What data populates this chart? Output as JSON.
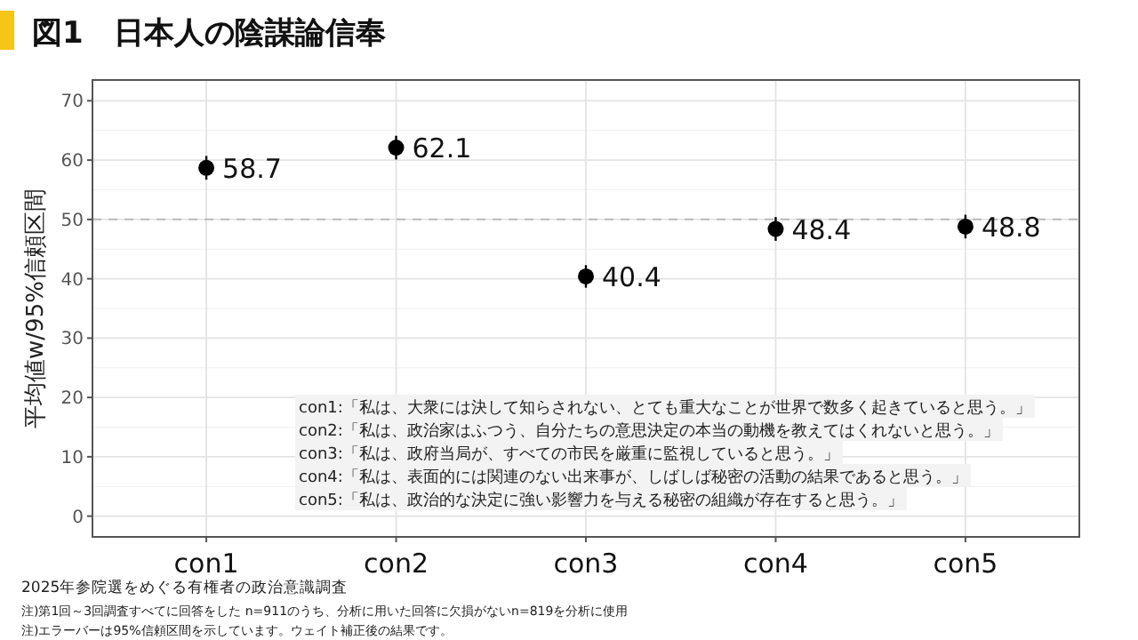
{
  "chart_data": {
    "type": "scatter",
    "title": "図1　日本人の陰謀論信奉",
    "ylabel": "平均値w/95%信頼区間",
    "categories": [
      "con1",
      "con2",
      "con3",
      "con4",
      "con5"
    ],
    "values": [
      58.7,
      62.1,
      40.4,
      48.4,
      48.8
    ],
    "errors": [
      2.0,
      2.0,
      1.9,
      2.0,
      2.0
    ],
    "color": "#000000",
    "marker": "circle",
    "data_labels": true,
    "grid": true,
    "ylim": [
      -3.5,
      73.5
    ],
    "yticks": [
      0,
      10,
      20,
      30,
      40,
      50,
      60,
      70
    ],
    "ref_lines": [
      {
        "axis": "y",
        "value": 50,
        "color": "#bbbbbb",
        "line_style": "dashed"
      }
    ],
    "annotations": [
      "con1:「私は、大衆には決して知らされない、とても重大なことが世界で数多く起きていると思う。」",
      "con2:「私は、政治家はふつう、自分たちの意思決定の本当の動機を教えてはくれないと思う。」",
      "con3:「私は、政府当局が、すべての市民を厳重に監視していると思う。」",
      "con4:「私は、表面的には関連のない出来事が、しばしば秘密の活動の結果であると思う。」",
      "con5:「私は、政治的な決定に強い影響力を与える秘密の組織が存在すると思う。」",
      "2025年参院選をめぐる有権者の政治意識調査",
      "注)第1回～3回調査すべてに回答をした n=911のうち、分析に用いた回答に欠損がないn=819を分析に使用",
      "注)エラーバーは95%信頼区間を示しています。ウェイト補正後の結果です。"
    ]
  }
}
